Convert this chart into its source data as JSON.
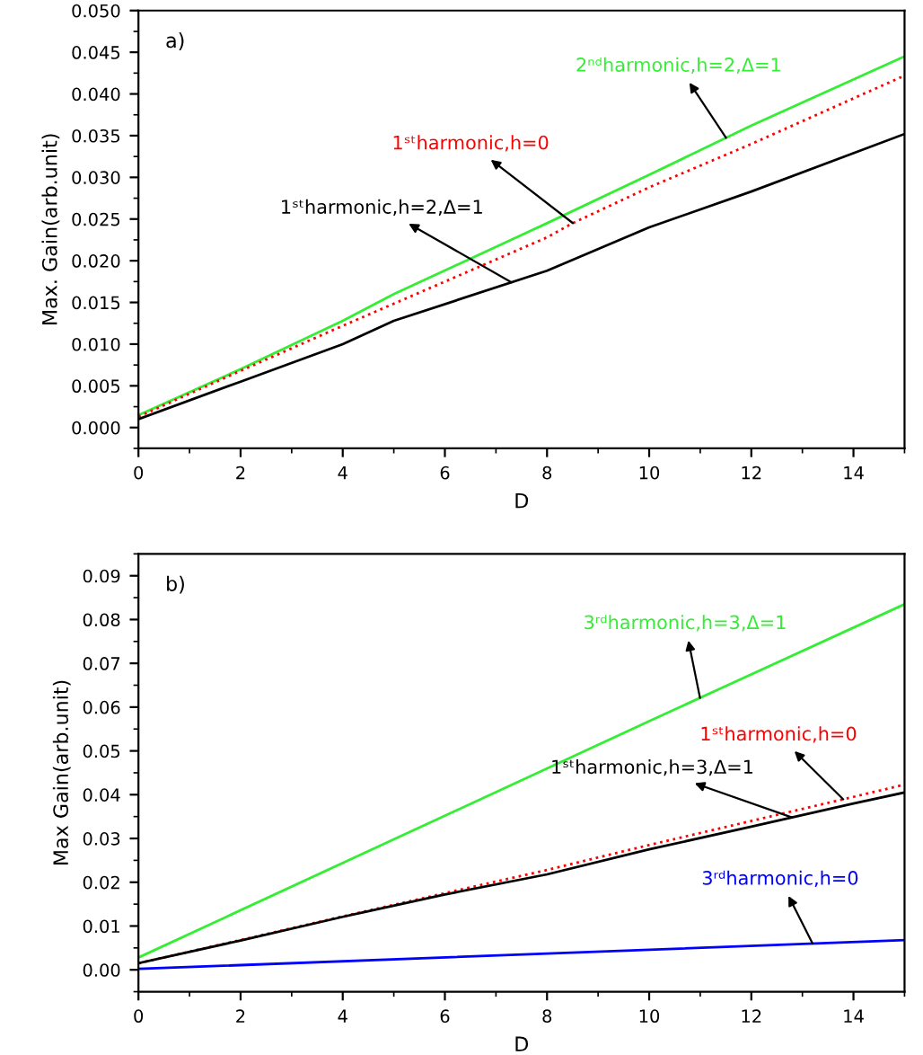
{
  "chart_data": [
    {
      "type": "line",
      "title": "a)",
      "xlabel": "D",
      "ylabel": "Max. Gain(arb.unit)",
      "xlim": [
        0,
        15
      ],
      "ylim": [
        -0.0025,
        0.05
      ],
      "xticks": [
        0,
        2,
        4,
        6,
        8,
        10,
        12,
        14
      ],
      "yticks": [
        {
          "value": 0,
          "label": "0.000"
        },
        {
          "value": 0.005,
          "label": "0.005"
        },
        {
          "value": 0.01,
          "label": "0.010"
        },
        {
          "value": 0.015,
          "label": "0.015"
        },
        {
          "value": 0.02,
          "label": "0.020"
        },
        {
          "value": 0.025,
          "label": "0.025"
        },
        {
          "value": 0.03,
          "label": "0.030"
        },
        {
          "value": 0.035,
          "label": "0.035"
        },
        {
          "value": 0.04,
          "label": "0.040"
        },
        {
          "value": 0.045,
          "label": "0.045"
        },
        {
          "value": 0.05,
          "label": "0.050"
        }
      ],
      "grid": false,
      "marker": "none",
      "series": [
        {
          "name": "2ⁿᵈharmonic,h=2,Δ=1",
          "color": "#33ee33",
          "line_style": "solid",
          "x": [
            0,
            2,
            4,
            5,
            8,
            10,
            12,
            15
          ],
          "values": [
            0.0015,
            0.007,
            0.0128,
            0.016,
            0.0245,
            0.0303,
            0.0362,
            0.0445
          ]
        },
        {
          "name": "1ˢᵗharmonic,h=0",
          "color": "#ff0000",
          "line_style": "dotted",
          "x": [
            0,
            2,
            4,
            6,
            8,
            8.5,
            10,
            12,
            15
          ],
          "values": [
            0.0013,
            0.0068,
            0.0122,
            0.0175,
            0.0228,
            0.0245,
            0.0288,
            0.034,
            0.0422
          ]
        },
        {
          "name": "1ˢᵗharmonic,h=2,Δ=1",
          "color": "#000000",
          "line_style": "solid",
          "x": [
            0,
            2,
            4,
            5,
            8,
            10,
            12,
            15
          ],
          "values": [
            0.001,
            0.0055,
            0.01,
            0.0128,
            0.0188,
            0.024,
            0.0283,
            0.0352
          ]
        }
      ]
    },
    {
      "type": "line",
      "title": "b)",
      "xlabel": "D",
      "ylabel": "Max Gain(arb.unit)",
      "xlim": [
        0,
        15
      ],
      "ylim": [
        -0.005,
        0.095
      ],
      "xticks": [
        0,
        2,
        4,
        6,
        8,
        10,
        12,
        14
      ],
      "yticks": [
        {
          "value": 0,
          "label": "0.00"
        },
        {
          "value": 0.01,
          "label": "0.01"
        },
        {
          "value": 0.02,
          "label": "0.02"
        },
        {
          "value": 0.03,
          "label": "0.03"
        },
        {
          "value": 0.04,
          "label": "0.04"
        },
        {
          "value": 0.05,
          "label": "0.05"
        },
        {
          "value": 0.06,
          "label": "0.06"
        },
        {
          "value": 0.07,
          "label": "0.07"
        },
        {
          "value": 0.08,
          "label": "0.08"
        },
        {
          "value": 0.09,
          "label": "0.09"
        }
      ],
      "grid": false,
      "marker": "none",
      "series": [
        {
          "name": "3ʳᵈharmonic,h=3,Δ=1",
          "color": "#33ee33",
          "line_style": "solid",
          "x": [
            0,
            5,
            10,
            15
          ],
          "values": [
            0.0028,
            0.0298,
            0.0568,
            0.0835
          ]
        },
        {
          "name": "1ˢᵗharmonic,h=0",
          "color": "#ff0000",
          "line_style": "dotted",
          "x": [
            0,
            2,
            4,
            6,
            8,
            10,
            12,
            14,
            15
          ],
          "values": [
            0.0015,
            0.0068,
            0.0122,
            0.0175,
            0.0228,
            0.0285,
            0.034,
            0.0395,
            0.0423
          ]
        },
        {
          "name": "1ˢᵗharmonic,h=3,Δ=1",
          "color": "#000000",
          "line_style": "solid",
          "x": [
            0,
            2,
            4,
            6,
            8,
            10,
            12,
            14,
            15
          ],
          "values": [
            0.0015,
            0.0067,
            0.0121,
            0.0172,
            0.0218,
            0.0275,
            0.0327,
            0.038,
            0.0405
          ]
        },
        {
          "name": "3ʳᵈharmonic,h=0",
          "color": "#0000ff",
          "line_style": "solid",
          "x": [
            0,
            8,
            15
          ],
          "values": [
            0.0002,
            0.0037,
            0.0068
          ]
        }
      ]
    }
  ]
}
